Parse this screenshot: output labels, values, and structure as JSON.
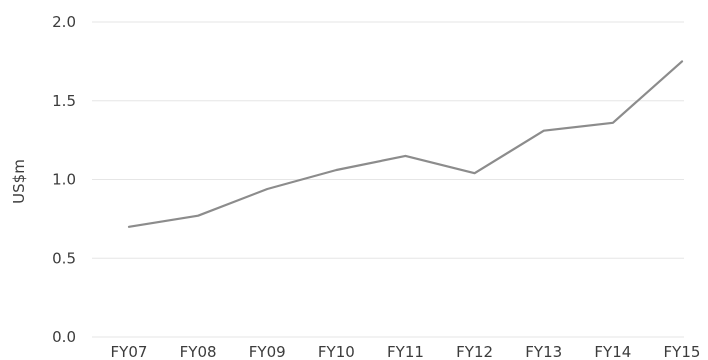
{
  "chart_data": {
    "type": "line",
    "title": "",
    "xlabel": "",
    "ylabel": "US$m",
    "ylim": [
      0,
      2.0
    ],
    "yticks": [
      "0.0",
      "0.5",
      "1.0",
      "1.5",
      "2.0"
    ],
    "categories": [
      "FY07",
      "FY08",
      "FY09",
      "FY10",
      "FY11",
      "FY12",
      "FY13",
      "FY14",
      "FY15"
    ],
    "series": [
      {
        "values": [
          0.7,
          0.77,
          0.94,
          1.06,
          1.15,
          1.04,
          1.31,
          1.36,
          1.75
        ],
        "color": "#8c8c8c"
      }
    ],
    "grid": true,
    "gridline_color": "#e6e6e6",
    "legend": false
  }
}
